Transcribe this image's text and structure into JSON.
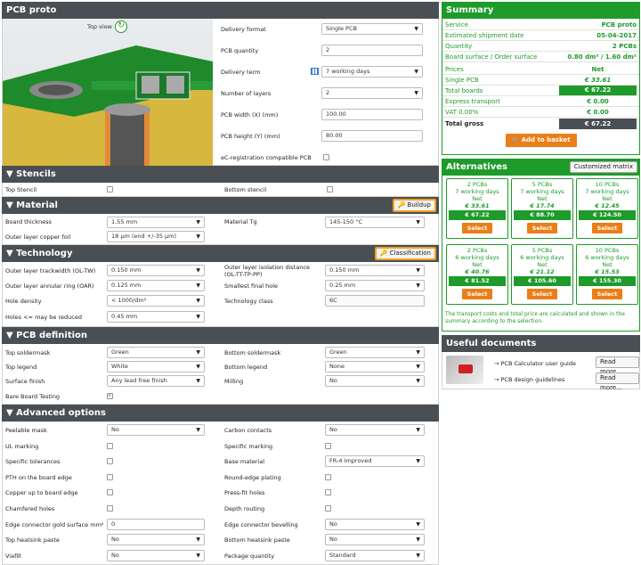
{
  "proto": {
    "title": "PCB proto",
    "top_view": "Top view",
    "rows": [
      {
        "label": "Delivery format",
        "value": "Single PCB",
        "type": "select"
      },
      {
        "label": "PCB quantity",
        "value": "2",
        "type": "input"
      },
      {
        "label": "Delivery term",
        "value": "7 working days",
        "type": "select"
      },
      {
        "label": "Number of layers",
        "value": "2",
        "type": "select"
      },
      {
        "label": "PCB width (X) (mm)",
        "value": "100.00",
        "type": "input"
      },
      {
        "label": "PCB height (Y) (mm)",
        "value": "80.00",
        "type": "input"
      },
      {
        "label": "eC-registration compatible PCB",
        "value": "",
        "type": "check"
      }
    ]
  },
  "stencils": {
    "title": "▼ Stencils",
    "top": "Top Stencil",
    "bottom": "Bottom stencil"
  },
  "material": {
    "title": "▼ Material",
    "button": "Buildup",
    "board_thickness": "Board thickness",
    "board_thickness_v": "1.55 mm",
    "material_tg": "Material Tg",
    "material_tg_v": "145-150 °C",
    "outer_copper": "Outer layer copper foil",
    "outer_copper_v": "18 µm (end +/-35 µm)"
  },
  "technology": {
    "title": "▼ Technology",
    "button": "Classification",
    "l1": "Outer layer trackwidth (OL-TW)",
    "v1": "0.150 mm",
    "l2": "Outer layer isolation distance (OL-TT-TP-PP)",
    "v2": "0.150 mm",
    "l3": "Outer layer annular ring (OAR)",
    "v3": "0.125 mm",
    "l4": "Smallest final hole",
    "v4": "0.25 mm",
    "l5": "Hole density",
    "v5": "< 1000/dm²",
    "l6": "Technology class",
    "v6": "6C",
    "l7": "Holes <= may be reduced",
    "v7": "0.45 mm"
  },
  "definition": {
    "title": "▼ PCB definition",
    "l1": "Top soldermask",
    "v1": "Green",
    "l2": "Bottom soldermask",
    "v2": "Green",
    "l3": "Top legend",
    "v3": "White",
    "l4": "Bottom legend",
    "v4": "None",
    "l5": "Surface finish",
    "v5": "Any lead free finish",
    "l6": "Milling",
    "v6": "No",
    "l7": "Bare Board Testing"
  },
  "advanced": {
    "title": "▼ Advanced options",
    "rows": [
      {
        "l": "Peelable mask",
        "lt": "select",
        "lv": "No",
        "r": "Carbon contacts",
        "rt": "select",
        "rv": "No"
      },
      {
        "l": "UL marking",
        "lt": "check",
        "lv": "",
        "r": "Specific marking",
        "rt": "check",
        "rv": ""
      },
      {
        "l": "Specific tolerances",
        "lt": "check",
        "lv": "",
        "r": "Base material",
        "rt": "select",
        "rv": "FR-4 Improved"
      },
      {
        "l": "PTH on the board edge",
        "lt": "check",
        "lv": "",
        "r": "Round-edge plating",
        "rt": "check",
        "rv": ""
      },
      {
        "l": "Copper up to board edge",
        "lt": "check",
        "lv": "",
        "r": "Press-fit holes",
        "rt": "check",
        "rv": ""
      },
      {
        "l": "Chamfered holes",
        "lt": "check",
        "lv": "",
        "r": "Depth routing",
        "rt": "check",
        "rv": ""
      },
      {
        "l": "Edge connector gold surface mm²",
        "lt": "input",
        "lv": "0",
        "r": "Edge connector bevelling",
        "rt": "select",
        "rv": "No"
      },
      {
        "l": "Top heatsink paste",
        "lt": "select",
        "lv": "No",
        "r": "Bottom heatsink paste",
        "rt": "select",
        "rv": "No"
      },
      {
        "l": "Viafill",
        "lt": "select",
        "lv": "No",
        "r": "Package quantity",
        "rt": "select",
        "rv": "Standard"
      }
    ]
  },
  "summary": {
    "title": "Summary",
    "rows": [
      {
        "k": "Service",
        "v": "PCB proto"
      },
      {
        "k": "Estimated shipment date",
        "v": "05-04-2017"
      },
      {
        "k": "Quantity",
        "v": "2 PCBs"
      },
      {
        "k": "Board surface / Order surface",
        "v": "0.80 dm² / 1.60 dm²"
      }
    ],
    "prices": "Prices",
    "net": "Net",
    "single": "Single PCB",
    "single_v": "€ 33.61",
    "total_boards": "Total boards",
    "total_boards_v": "€ 67.22",
    "express": "Express transport",
    "express_v": "€ 0.00",
    "vat": "VAT 0.00%",
    "vat_v": "€ 0.00",
    "gross": "Total gross",
    "gross_v": "€ 67.22",
    "basket": "Add to basket"
  },
  "alternatives": {
    "title": "Alternatives",
    "custom": "Customized matrix",
    "cards": [
      {
        "q": "2 PCBs",
        "d": "7 working days",
        "n": "Net",
        "p": "€ 33.61",
        "t": "€ 67.22",
        "b": "Select"
      },
      {
        "q": "5 PCBs",
        "d": "7 working days",
        "n": "Net",
        "p": "€ 17.74",
        "t": "€ 88.70",
        "b": "Select"
      },
      {
        "q": "10 PCBs",
        "d": "7 working days",
        "n": "Net",
        "p": "€ 12.45",
        "t": "€ 124.50",
        "b": "Select"
      },
      {
        "q": "2 PCBs",
        "d": "6 working days",
        "n": "Net",
        "p": "€ 40.76",
        "t": "€ 81.52",
        "b": "Select"
      },
      {
        "q": "5 PCBs",
        "d": "6 working days",
        "n": "Net",
        "p": "€ 21.12",
        "t": "€ 105.60",
        "b": "Select"
      },
      {
        "q": "10 PCBs",
        "d": "6 working days",
        "n": "Net",
        "p": "€ 15.53",
        "t": "€ 155.30",
        "b": "Select"
      }
    ],
    "note": "The transport costs and total price are calculated and shown in the summary according to the selection."
  },
  "documents": {
    "title": "Useful documents",
    "d1": "→ PCB Calculator user guide",
    "d2": "→ PCB design guidelines",
    "more": "Read more..."
  },
  "colors": {
    "green": "#1e9b2a",
    "dark": "#4a4f54",
    "orange": "#ea7e17"
  }
}
